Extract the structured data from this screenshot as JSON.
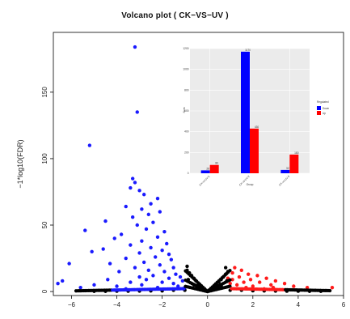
{
  "chart_data": [
    {
      "type": "scatter",
      "title": "Volcano plot ( CK−VS−UV )",
      "xlabel": "",
      "ylabel": "−1*log10(FDR)",
      "xlim": [
        -6.8,
        6.0
      ],
      "ylim": [
        -3,
        195
      ],
      "x_ticks": [
        "−6",
        "−4",
        "−2",
        "0",
        "2",
        "4",
        "6"
      ],
      "x_tick_values": [
        -6,
        -4,
        -2,
        0,
        2,
        4,
        6
      ],
      "y_ticks": [
        "0",
        "50",
        "100",
        "150"
      ],
      "y_tick_values": [
        0,
        50,
        100,
        150
      ],
      "grid": false,
      "legend": "none",
      "colors": {
        "down": "#1a1aff",
        "up": "#ff1a1a",
        "not_significant": "#000000"
      },
      "series": [
        {
          "group": "down",
          "points": [
            [
              -3.2,
              184
            ],
            [
              -3.1,
              135
            ],
            [
              -5.2,
              110
            ],
            [
              -3.3,
              85
            ],
            [
              -3.2,
              82
            ],
            [
              -3.4,
              78
            ],
            [
              -3.0,
              76
            ],
            [
              -2.8,
              73
            ],
            [
              -2.2,
              70
            ],
            [
              -2.5,
              66
            ],
            [
              -3.6,
              64
            ],
            [
              -2.9,
              62
            ],
            [
              -2.1,
              60
            ],
            [
              -2.6,
              58
            ],
            [
              -3.3,
              56
            ],
            [
              -4.5,
              53
            ],
            [
              -2.4,
              52
            ],
            [
              -3.1,
              50
            ],
            [
              -2.7,
              47
            ],
            [
              -5.4,
              46
            ],
            [
              -1.9,
              45
            ],
            [
              -3.8,
              43
            ],
            [
              -2.2,
              41
            ],
            [
              -4.1,
              40
            ],
            [
              -2.9,
              38
            ],
            [
              -1.8,
              36
            ],
            [
              -3.4,
              35
            ],
            [
              -2.5,
              33
            ],
            [
              -4.6,
              32
            ],
            [
              -2.0,
              31
            ],
            [
              -3.0,
              29
            ],
            [
              -1.7,
              28
            ],
            [
              -5.1,
              30
            ],
            [
              -2.3,
              26
            ],
            [
              -3.6,
              25
            ],
            [
              -1.6,
              24
            ],
            [
              -2.8,
              22
            ],
            [
              -4.3,
              21
            ],
            [
              -2.1,
              20
            ],
            [
              -6.1,
              21
            ],
            [
              -1.5,
              18
            ],
            [
              -3.2,
              18
            ],
            [
              -2.6,
              16
            ],
            [
              -1.9,
              15
            ],
            [
              -3.9,
              15
            ],
            [
              -1.4,
              13
            ],
            [
              -2.4,
              12
            ],
            [
              -3.0,
              11
            ],
            [
              -1.2,
              11
            ],
            [
              -1.7,
              10
            ],
            [
              -2.7,
              9
            ],
            [
              -4.4,
              9
            ],
            [
              -1.1,
              8
            ],
            [
              -2.0,
              7
            ],
            [
              -3.4,
              7
            ],
            [
              -1.5,
              6
            ],
            [
              -6.4,
              8
            ],
            [
              -6.6,
              6
            ],
            [
              -5.0,
              5
            ],
            [
              -2.9,
              5
            ],
            [
              -1.3,
              4
            ],
            [
              -4.0,
              4
            ],
            [
              -2.2,
              3
            ],
            [
              -1.0,
              3
            ],
            [
              -5.6,
              3
            ],
            [
              -3.6,
              2
            ]
          ]
        },
        {
          "group": "up",
          "points": [
            [
              1.2,
              18
            ],
            [
              1.5,
              16
            ],
            [
              1.1,
              14
            ],
            [
              1.8,
              13
            ],
            [
              2.2,
              12
            ],
            [
              1.4,
              11
            ],
            [
              2.6,
              10
            ],
            [
              1.9,
              9
            ],
            [
              1.1,
              9
            ],
            [
              3.0,
              8
            ],
            [
              2.3,
              7
            ],
            [
              1.6,
              7
            ],
            [
              3.4,
              6
            ],
            [
              1.3,
              5
            ],
            [
              2.8,
              5
            ],
            [
              2.0,
              4
            ],
            [
              3.8,
              4
            ],
            [
              1.7,
              3
            ],
            [
              4.4,
              3
            ],
            [
              2.5,
              2
            ],
            [
              5.5,
              3
            ],
            [
              1.0,
              6
            ],
            [
              0.9,
              10
            ],
            [
              2.9,
              3
            ]
          ]
        },
        {
          "group": "not_significant",
          "points": [
            [
              -0.9,
              16
            ],
            [
              -0.8,
              14
            ],
            [
              -0.7,
              12
            ],
            [
              -0.6,
              10
            ],
            [
              -0.5,
              8
            ],
            [
              -0.4,
              6
            ],
            [
              -0.3,
              4
            ],
            [
              -0.2,
              2
            ],
            [
              -0.1,
              1
            ],
            [
              0.0,
              0
            ],
            [
              0.1,
              1
            ],
            [
              0.2,
              2
            ],
            [
              0.3,
              3
            ],
            [
              0.4,
              5
            ],
            [
              0.5,
              7
            ],
            [
              0.6,
              9
            ],
            [
              0.7,
              11
            ],
            [
              0.8,
              13
            ],
            [
              0.9,
              15
            ],
            [
              0.8,
              18
            ],
            [
              -0.9,
              19
            ],
            [
              -0.85,
              9
            ],
            [
              0.85,
              8
            ],
            [
              -0.6,
              5
            ],
            [
              0.6,
              4
            ],
            [
              -1.0,
              1
            ],
            [
              -1.5,
              1
            ],
            [
              -2.0,
              0.5
            ],
            [
              -2.5,
              0.5
            ],
            [
              -3.0,
              0.4
            ],
            [
              -3.5,
              0.3
            ],
            [
              -4.0,
              0.3
            ],
            [
              -4.5,
              0.2
            ],
            [
              -5.0,
              0.2
            ],
            [
              1.0,
              1
            ],
            [
              1.5,
              1
            ],
            [
              2.0,
              0.6
            ],
            [
              2.5,
              0.5
            ],
            [
              3.0,
              0.4
            ],
            [
              3.5,
              0.3
            ],
            [
              4.0,
              0.3
            ],
            [
              4.5,
              0.2
            ],
            [
              5.0,
              0.2
            ]
          ]
        }
      ]
    },
    {
      "type": "bar",
      "title": "",
      "xlabel": "Group",
      "ylabel": "Num",
      "ylim": [
        0,
        1200
      ],
      "categories": [
        "CK-vs-UV-1",
        "CK-vs-UV-2",
        "CK-vs-UV-3"
      ],
      "y_ticks": [
        "0",
        "200",
        "400",
        "600",
        "800",
        "1000",
        "1200"
      ],
      "legend": "right",
      "legend_title": "Regulated",
      "series": [
        {
          "name": "Down",
          "color": "#0000ff",
          "values": [
            28,
            1170,
            32
          ]
        },
        {
          "name": "Up",
          "color": "#ff0000",
          "values": [
            80,
            430,
            180
          ]
        }
      ]
    }
  ]
}
